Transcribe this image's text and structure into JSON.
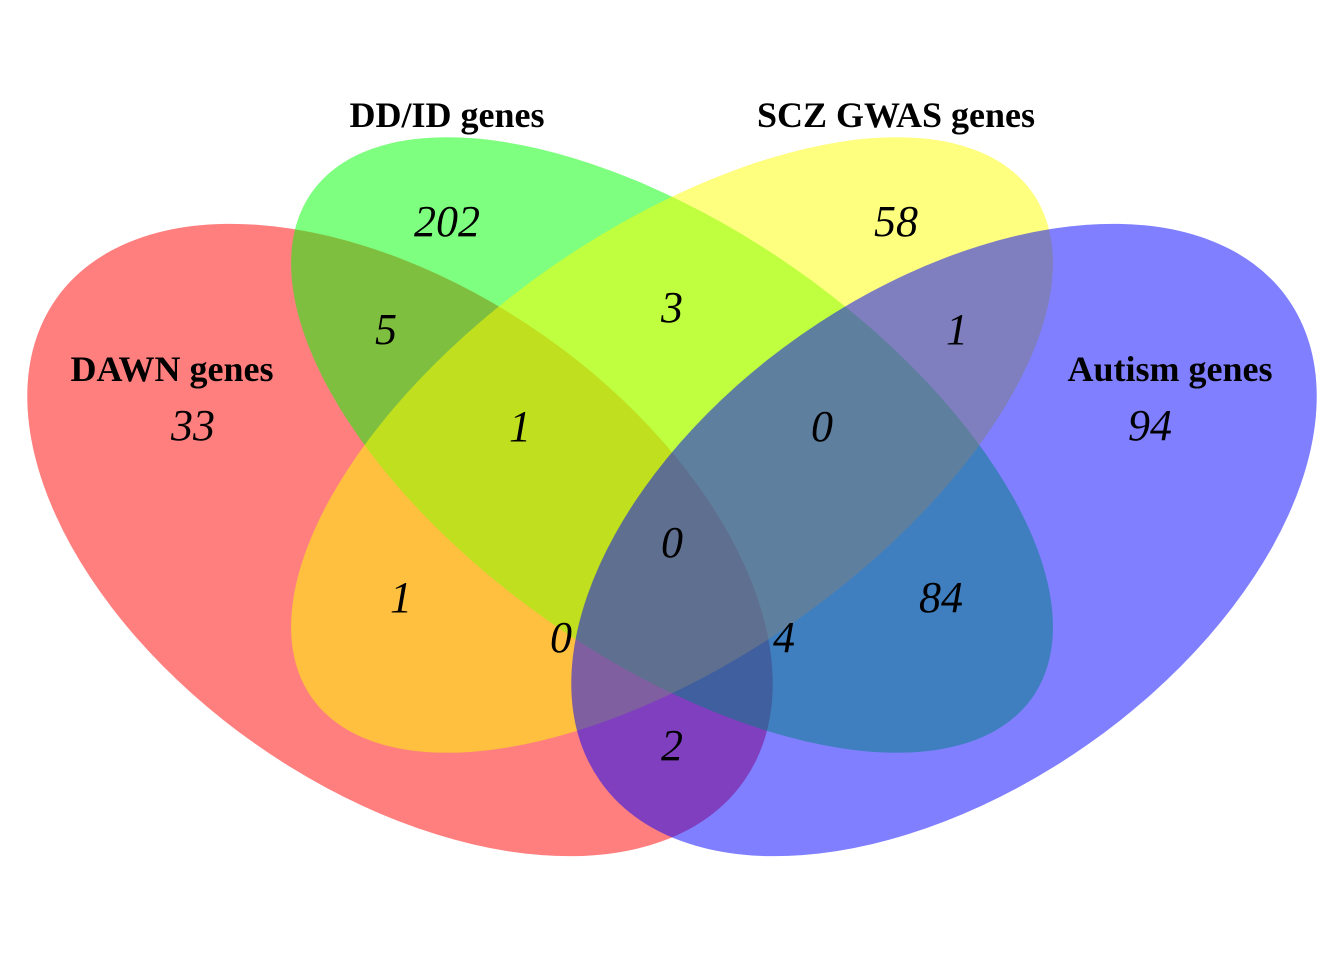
{
  "sets": [
    {
      "id": "dawn",
      "label": "DAWN genes",
      "color": "#ff0000"
    },
    {
      "id": "ddid",
      "label": "DD/ID genes",
      "color": "#00ff00"
    },
    {
      "id": "scz",
      "label": "SCZ GWAS genes",
      "color": "#ffff00"
    },
    {
      "id": "autism",
      "label": "Autism genes",
      "color": "#0000ff"
    }
  ],
  "regions": {
    "dawn_only": "33",
    "ddid_only": "202",
    "scz_only": "58",
    "autism_only": "94",
    "dawn_ddid": "5",
    "ddid_scz": "3",
    "scz_autism": "1",
    "dawn_ddid_scz": "1",
    "ddid_scz_autism": "0",
    "all_four": "0",
    "dawn_scz": "1",
    "ddid_autism": "84",
    "dawn_scz_autism": "0",
    "dawn_ddid_autism": "4",
    "dawn_autism": "2"
  }
}
